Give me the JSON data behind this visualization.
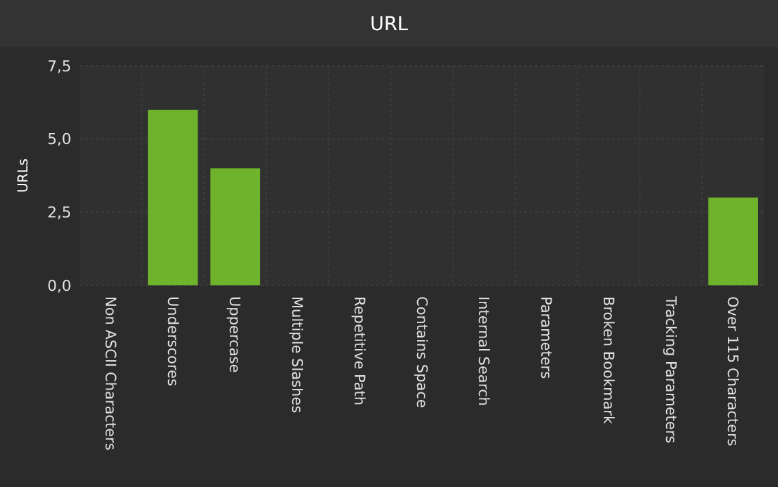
{
  "chart_data": {
    "type": "bar",
    "title": "URL",
    "ylabel": "URLs",
    "categories": [
      "Non ASCII Characters",
      "Underscores",
      "Uppercase",
      "Multiple Slashes",
      "Repetitive Path",
      "Contains Space",
      "Internal Search",
      "Parameters",
      "Broken Bookmark",
      "Tracking Parameters",
      "Over 115 Characters"
    ],
    "values": [
      0,
      6,
      4,
      0,
      0,
      0,
      0,
      0,
      0,
      0,
      3
    ],
    "color": "#6fb22b",
    "ylim": [
      0,
      7.5
    ],
    "yticks": [
      {
        "value": 0,
        "label": "0,0"
      },
      {
        "value": 2.5,
        "label": "2,5"
      },
      {
        "value": 5,
        "label": "5,0"
      },
      {
        "value": 7.5,
        "label": "7,5"
      }
    ],
    "grid": true
  }
}
